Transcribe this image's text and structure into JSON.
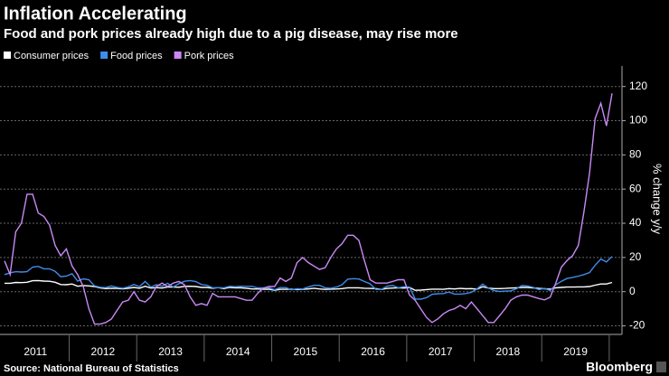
{
  "chart_data": {
    "type": "line",
    "title": "Inflation Accelerating",
    "subtitle": "Food and pork prices already high due to a pig disease, may rise more",
    "y_label": "% change y/y",
    "source": "Source: National Bureau of Statistics",
    "brand": "Bloomberg",
    "legend": "top-left",
    "grid": true,
    "ylim": [
      -25,
      132
    ],
    "yticks": [
      -20,
      0,
      20,
      40,
      60,
      80,
      100,
      120
    ],
    "categories": [
      null,
      null,
      null,
      null,
      null,
      null,
      "2011",
      null,
      null,
      null,
      null,
      null,
      null,
      null,
      null,
      null,
      null,
      null,
      "2012",
      null,
      null,
      null,
      null,
      null,
      null,
      null,
      null,
      null,
      null,
      null,
      "2013",
      null,
      null,
      null,
      null,
      null,
      null,
      null,
      null,
      null,
      null,
      null,
      "2014",
      null,
      null,
      null,
      null,
      null,
      null,
      null,
      null,
      null,
      null,
      null,
      "2015",
      null,
      null,
      null,
      null,
      null,
      null,
      null,
      null,
      null,
      null,
      null,
      "2016",
      null,
      null,
      null,
      null,
      null,
      null,
      null,
      null,
      null,
      null,
      null,
      "2017",
      null,
      null,
      null,
      null,
      null,
      null,
      null,
      null,
      null,
      null,
      null,
      "2018",
      null,
      null,
      null,
      null,
      null,
      null,
      null,
      null,
      null,
      null,
      null,
      "2019",
      null,
      null,
      null,
      null,
      null,
      null
    ],
    "series": [
      {
        "name": "Consumer prices",
        "color": "#ffffff",
        "values": [
          4.9,
          4.9,
          5.4,
          5.3,
          5.5,
          6.4,
          6.5,
          6.2,
          6.1,
          5.5,
          4.2,
          4.1,
          4.5,
          3.2,
          3.6,
          3.4,
          3.0,
          2.2,
          1.8,
          2.0,
          1.9,
          1.7,
          2.0,
          2.5,
          2.0,
          3.2,
          2.1,
          2.4,
          2.1,
          2.7,
          2.7,
          2.6,
          3.1,
          3.2,
          3.0,
          2.5,
          2.5,
          2.0,
          2.4,
          1.8,
          2.5,
          2.3,
          2.3,
          2.0,
          1.6,
          1.6,
          1.4,
          1.5,
          0.8,
          1.4,
          1.4,
          1.5,
          1.2,
          1.4,
          1.6,
          2.0,
          1.6,
          1.3,
          1.5,
          1.6,
          1.8,
          2.3,
          2.3,
          2.3,
          2.0,
          1.9,
          1.8,
          1.3,
          1.9,
          2.1,
          2.3,
          2.1,
          2.5,
          0.8,
          0.9,
          1.2,
          1.5,
          1.5,
          1.4,
          1.8,
          1.6,
          1.9,
          1.7,
          1.8,
          1.5,
          2.9,
          2.1,
          1.8,
          1.8,
          1.9,
          2.1,
          2.3,
          2.5,
          2.5,
          2.2,
          1.9,
          1.7,
          1.5,
          2.3,
          2.5,
          2.7,
          2.7,
          2.8,
          2.8,
          3.0,
          3.8,
          4.5,
          4.5,
          5.4
        ]
      },
      {
        "name": "Food prices",
        "color": "#3f8de8",
        "values": [
          10,
          11,
          11.7,
          11.5,
          11.7,
          14.4,
          14.8,
          13.4,
          13.4,
          11.9,
          8.8,
          9.1,
          10.5,
          6.2,
          7.5,
          7,
          3.4,
          2.6,
          2.4,
          3.4,
          2.5,
          2,
          2.8,
          4.2,
          2.9,
          6,
          2.7,
          4.1,
          3.2,
          4.9,
          2.7,
          4.7,
          6.1,
          6.5,
          5.9,
          4.2,
          3.7,
          2.3,
          2.4,
          2.3,
          3.1,
          2.9,
          3.2,
          3.1,
          3.1,
          2.2,
          2.2,
          2.2,
          1.1,
          2.4,
          2.4,
          1.1,
          1.7,
          1.6,
          2.7,
          3.7,
          3.7,
          2.3,
          2.0,
          2.7,
          4.1,
          7.3,
          7.6,
          7.4,
          5.9,
          4.6,
          1.3,
          1.3,
          3.2,
          3.6,
          2.3,
          2.9,
          2.7,
          -4.3,
          -4.4,
          -3.5,
          -1.6,
          -1.2,
          -1.1,
          -0.2,
          -1.4,
          -1.4,
          -1.1,
          -0.4,
          1.7,
          4.4,
          2.1,
          0.7,
          0.1,
          0.3,
          0.5,
          1.7,
          3.6,
          3.3,
          2.5,
          1.2,
          1.9,
          0.7,
          4.1,
          6.1,
          7.7,
          8.3,
          9.1,
          10,
          11.2,
          15.5,
          19.1,
          17.4,
          20.6
        ]
      },
      {
        "name": "Pork prices",
        "color": "#c98af5",
        "values": [
          18,
          10,
          35,
          40,
          57,
          57,
          46,
          44,
          39,
          27,
          21,
          25,
          15,
          10,
          3,
          -10,
          -19,
          -19,
          -18,
          -16,
          -11,
          -6,
          -5,
          0,
          -5,
          -6,
          -3,
          3,
          5,
          3,
          5,
          6,
          4,
          -3,
          -8,
          -7,
          -8,
          -1,
          -3,
          -3,
          -3,
          -3,
          -4,
          -5,
          -5,
          -1,
          2,
          3,
          3,
          8,
          6,
          8,
          17,
          20,
          17,
          15,
          13,
          14,
          20,
          25,
          28,
          33,
          33,
          30,
          18,
          7,
          5,
          5,
          5,
          6,
          7,
          7,
          -2,
          -5,
          -10,
          -15,
          -18,
          -16,
          -13,
          -11,
          -10,
          -8,
          -10,
          -6,
          -10,
          -14,
          -18,
          -18,
          -14,
          -10,
          -5,
          -3,
          -2,
          -2,
          -3,
          -4,
          -4.8,
          -3.3,
          5.1,
          14.4,
          18.2,
          21.1,
          27,
          46.7,
          69.3,
          101.3,
          110.2,
          97,
          116
        ]
      }
    ]
  }
}
